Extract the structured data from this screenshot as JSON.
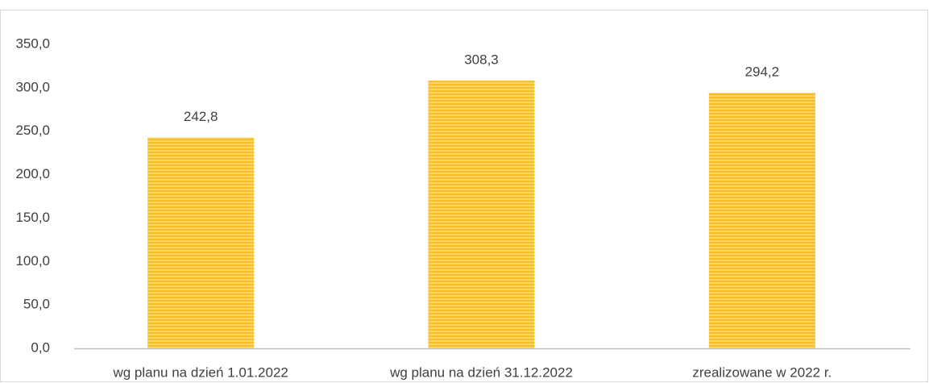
{
  "chart_data": {
    "type": "bar",
    "categories": [
      "wg planu na dzień 1.01.2022",
      "wg planu na dzień 31.12.2022",
      "zrealizowane w 2022 r."
    ],
    "values": [
      242.8,
      308.3,
      294.2
    ],
    "value_labels": [
      "242,8",
      "308,3",
      "294,2"
    ],
    "color": "#f5bf2a",
    "ylim": [
      0,
      350
    ],
    "yticks": [
      {
        "value": 0,
        "label": "0,0"
      },
      {
        "value": 50,
        "label": "50,0"
      },
      {
        "value": 100,
        "label": "100,0"
      },
      {
        "value": 150,
        "label": "150,0"
      },
      {
        "value": 200,
        "label": "200,0"
      },
      {
        "value": 250,
        "label": "250,0"
      },
      {
        "value": 300,
        "label": "300,0"
      },
      {
        "value": 350,
        "label": "350,0"
      }
    ],
    "grid": false
  }
}
